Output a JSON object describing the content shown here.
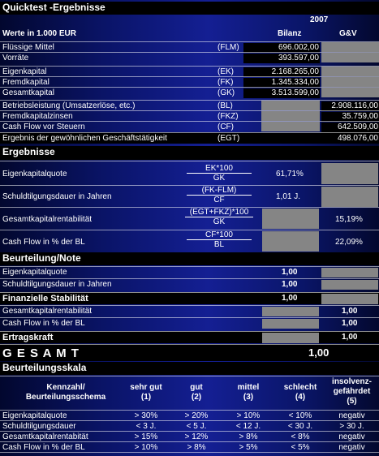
{
  "title": "Quicktest -Ergebnisse",
  "year": "2007",
  "units": "Werte in 1.000 EUR",
  "col_bilanz": "Bilanz",
  "col_gv": "G&V",
  "bilanz_rows": [
    {
      "label": "Flüssige Mittel",
      "abbr": "(FLM)",
      "value": "696.002,00"
    },
    {
      "label": "Vorräte",
      "abbr": "",
      "value": "393.597,00"
    },
    {
      "label": "Eigenkapital",
      "abbr": "(EK)",
      "value": "2.168.265,00"
    },
    {
      "label": "Fremdkapital",
      "abbr": "(FK)",
      "value": "1.345.334,00"
    },
    {
      "label": "Gesamtkapital",
      "abbr": "(GK)",
      "value": "3.513.599,00"
    }
  ],
  "gv_rows": [
    {
      "label": "Betriebsleistung (Umsatzerlöse, etc.)",
      "abbr": "(BL)",
      "value": "2.908.116,00"
    },
    {
      "label": "Fremdkapitalzinsen",
      "abbr": "(FKZ)",
      "value": "35.759,00"
    },
    {
      "label": "Cash Flow vor Steuern",
      "abbr": "(CF)",
      "value": "642.509,00"
    },
    {
      "label": "Ergebnis der gewöhnlichen Geschäftstätigkeit",
      "abbr": "(EGT)",
      "value": "498.076,00"
    }
  ],
  "ergebnisse_title": "Ergebnisse",
  "ergebnisse": [
    {
      "label": "Eigenkapitalquote",
      "num": "EK*100",
      "den": "GK",
      "bilanz": "61,71%",
      "gv": ""
    },
    {
      "label": "Schuldtilgungsdauer in Jahren",
      "num": "(FK-FLM)",
      "den": "CF",
      "bilanz": "1,01 J.",
      "gv": ""
    },
    {
      "label": "Gesamtkapitalrentabilität",
      "num": "(EGT+FKZ)*100",
      "den": "GK",
      "bilanz": "",
      "gv": "15,19%"
    },
    {
      "label": "Cash Flow in % der BL",
      "num": "CF*100",
      "den": "BL",
      "bilanz": "",
      "gv": "22,09%"
    }
  ],
  "beurteilung_title": "Beurteilung/Note",
  "beurteilung": {
    "ekq": {
      "label": "Eigenkapitalquote",
      "value": "1,00"
    },
    "std": {
      "label": "Schuldtilgungsdauer in Jahren",
      "value": "1,00"
    },
    "fin": {
      "label": "Finanzielle Stabilität",
      "value": "1,00"
    },
    "gkr": {
      "label": "Gesamtkapitalrentabilität",
      "value": "1,00"
    },
    "cf": {
      "label": "Cash Flow in % der BL",
      "value": "1,00"
    },
    "ek": {
      "label": "Ertragskraft",
      "value": "1,00"
    }
  },
  "gesamt": {
    "label": "G E S A M T",
    "value": "1,00"
  },
  "skala_title": "Beurteilungsskala",
  "skala_header": {
    "kennzahl": [
      "Kennzahl/",
      "Beurteilungsschema"
    ],
    "cols": [
      [
        "sehr gut",
        "(1)"
      ],
      [
        "gut",
        "(2)"
      ],
      [
        "mittel",
        "(3)"
      ],
      [
        "schlecht",
        "(4)"
      ],
      [
        "insolvenz-",
        "gefährdet",
        "(5)"
      ]
    ]
  },
  "skala_rows": [
    {
      "label": "Eigenkapitalquote",
      "v": [
        "> 30%",
        "> 20%",
        "> 10%",
        "< 10%",
        "negativ"
      ]
    },
    {
      "label": "Schuldtilgungsdauer",
      "v": [
        "< 3 J.",
        "< 5 J.",
        "< 12 J.",
        "< 30 J.",
        "> 30 J."
      ]
    },
    {
      "label": "Gesamtkapitalrentabität",
      "v": [
        "> 15%",
        "> 12%",
        "> 8%",
        "< 8%",
        "negativ"
      ]
    },
    {
      "label": "Cash Flow in % der BL",
      "v": [
        "> 10%",
        "> 8%",
        "> 5%",
        "< 5%",
        "negativ"
      ]
    }
  ]
}
